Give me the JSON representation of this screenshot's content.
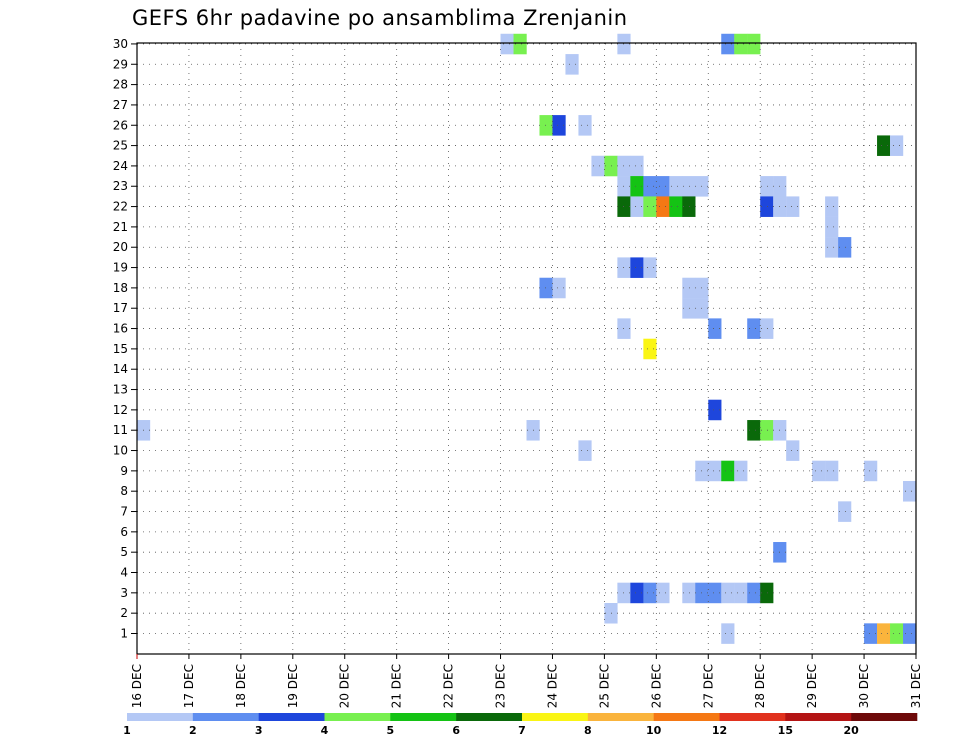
{
  "chart_data": {
    "type": "heatmap",
    "title": "GEFS 6hr padavine po ansamblima Zrenjanin",
    "x_labels": [
      "16 DEC",
      "17 DEC",
      "18 DEC",
      "19 DEC",
      "20 DEC",
      "21 DEC",
      "22 DEC",
      "23 DEC",
      "24 DEC",
      "25 DEC",
      "26 DEC",
      "27 DEC",
      "28 DEC",
      "29 DEC",
      "30 DEC",
      "31 DEC"
    ],
    "y_labels": [
      "1",
      "2",
      "3",
      "4",
      "5",
      "6",
      "7",
      "8",
      "9",
      "10",
      "11",
      "12",
      "13",
      "14",
      "15",
      "16",
      "17",
      "18",
      "19",
      "20",
      "21",
      "22",
      "23",
      "24",
      "25",
      "26",
      "27",
      "28",
      "29",
      "30"
    ],
    "grid": true,
    "colorbar": {
      "labels": [
        "1",
        "2",
        "3",
        "4",
        "5",
        "6",
        "7",
        "8",
        "10",
        "12",
        "15",
        "20"
      ],
      "colors": [
        "#b4c8f5",
        "#5f8ef0",
        "#1e46dc",
        "#78f050",
        "#14c314",
        "#0a690a",
        "#faf514",
        "#fab43c",
        "#f57814",
        "#e1321e",
        "#b41414",
        "#6e0a0a"
      ]
    },
    "cells": [
      {
        "member": 30,
        "step": 36,
        "value": 1
      },
      {
        "member": 30,
        "step": 37,
        "value": 4
      },
      {
        "member": 30,
        "step": 45,
        "value": 1
      },
      {
        "member": 30,
        "step": 53,
        "value": 2
      },
      {
        "member": 30,
        "step": 54,
        "value": 4
      },
      {
        "member": 30,
        "step": 55,
        "value": 4
      },
      {
        "member": 29,
        "step": 41,
        "value": 1
      },
      {
        "member": 26,
        "step": 39,
        "value": 4
      },
      {
        "member": 26,
        "step": 40,
        "value": 3
      },
      {
        "member": 26,
        "step": 42,
        "value": 1
      },
      {
        "member": 25,
        "step": 65,
        "value": 6
      },
      {
        "member": 25,
        "step": 66,
        "value": 1
      },
      {
        "member": 25,
        "step": 68,
        "value": 6
      },
      {
        "member": 24,
        "step": 43,
        "value": 1
      },
      {
        "member": 24,
        "step": 44,
        "value": 4
      },
      {
        "member": 24,
        "step": 45,
        "value": 1
      },
      {
        "member": 24,
        "step": 46,
        "value": 1
      },
      {
        "member": 23,
        "step": 45,
        "value": 1
      },
      {
        "member": 23,
        "step": 46,
        "value": 5
      },
      {
        "member": 23,
        "step": 47,
        "value": 2
      },
      {
        "member": 23,
        "step": 48,
        "value": 2
      },
      {
        "member": 23,
        "step": 49,
        "value": 1
      },
      {
        "member": 23,
        "step": 50,
        "value": 1
      },
      {
        "member": 23,
        "step": 51,
        "value": 1
      },
      {
        "member": 23,
        "step": 56,
        "value": 1
      },
      {
        "member": 23,
        "step": 57,
        "value": 1
      },
      {
        "member": 22,
        "step": 45,
        "value": 6
      },
      {
        "member": 22,
        "step": 46,
        "value": 1
      },
      {
        "member": 22,
        "step": 47,
        "value": 4
      },
      {
        "member": 22,
        "step": 48,
        "value": 10
      },
      {
        "member": 22,
        "step": 49,
        "value": 5
      },
      {
        "member": 22,
        "step": 50,
        "value": 6
      },
      {
        "member": 22,
        "step": 56,
        "value": 3
      },
      {
        "member": 22,
        "step": 57,
        "value": 1
      },
      {
        "member": 22,
        "step": 58,
        "value": 1
      },
      {
        "member": 22,
        "step": 61,
        "value": 1
      },
      {
        "member": 21,
        "step": 61,
        "value": 1
      },
      {
        "member": 20,
        "step": 61,
        "value": 1
      },
      {
        "member": 20,
        "step": 62,
        "value": 2
      },
      {
        "member": 19,
        "step": 45,
        "value": 1
      },
      {
        "member": 19,
        "step": 46,
        "value": 3
      },
      {
        "member": 19,
        "step": 47,
        "value": 1
      },
      {
        "member": 18,
        "step": 39,
        "value": 2
      },
      {
        "member": 18,
        "step": 40,
        "value": 1
      },
      {
        "member": 18,
        "step": 50,
        "value": 1
      },
      {
        "member": 18,
        "step": 51,
        "value": 1
      },
      {
        "member": 17,
        "step": 50,
        "value": 1
      },
      {
        "member": 17,
        "step": 51,
        "value": 1
      },
      {
        "member": 16,
        "step": 45,
        "value": 1
      },
      {
        "member": 16,
        "step": 52,
        "value": 2
      },
      {
        "member": 16,
        "step": 55,
        "value": 2
      },
      {
        "member": 16,
        "step": 56,
        "value": 1
      },
      {
        "member": 15,
        "step": 47,
        "value": 7
      },
      {
        "member": 12,
        "step": 52,
        "value": 3
      },
      {
        "member": 12,
        "step": 68,
        "value": 1
      },
      {
        "member": 11,
        "step": 8,
        "value": 1
      },
      {
        "member": 11,
        "step": 38,
        "value": 1
      },
      {
        "member": 11,
        "step": 55,
        "value": 6
      },
      {
        "member": 11,
        "step": 56,
        "value": 4
      },
      {
        "member": 11,
        "step": 57,
        "value": 1
      },
      {
        "member": 10,
        "step": 42,
        "value": 1
      },
      {
        "member": 10,
        "step": 58,
        "value": 1
      },
      {
        "member": 9,
        "step": 51,
        "value": 1
      },
      {
        "member": 9,
        "step": 52,
        "value": 1
      },
      {
        "member": 9,
        "step": 53,
        "value": 5
      },
      {
        "member": 9,
        "step": 54,
        "value": 1
      },
      {
        "member": 9,
        "step": 60,
        "value": 1
      },
      {
        "member": 9,
        "step": 61,
        "value": 1
      },
      {
        "member": 9,
        "step": 64,
        "value": 1
      },
      {
        "member": 8,
        "step": 67,
        "value": 1
      },
      {
        "member": 8,
        "step": 68,
        "value": 3
      },
      {
        "member": 7,
        "step": 62,
        "value": 1
      },
      {
        "member": 5,
        "step": 57,
        "value": 2
      },
      {
        "member": 3,
        "step": 45,
        "value": 1
      },
      {
        "member": 3,
        "step": 46,
        "value": 3
      },
      {
        "member": 3,
        "step": 47,
        "value": 2
      },
      {
        "member": 3,
        "step": 48,
        "value": 1
      },
      {
        "member": 3,
        "step": 50,
        "value": 1
      },
      {
        "member": 3,
        "step": 51,
        "value": 2
      },
      {
        "member": 3,
        "step": 52,
        "value": 2
      },
      {
        "member": 3,
        "step": 53,
        "value": 1
      },
      {
        "member": 3,
        "step": 54,
        "value": 1
      },
      {
        "member": 3,
        "step": 55,
        "value": 2
      },
      {
        "member": 3,
        "step": 56,
        "value": 6
      },
      {
        "member": 2,
        "step": 44,
        "value": 1
      },
      {
        "member": 1,
        "step": 53,
        "value": 1
      },
      {
        "member": 1,
        "step": 64,
        "value": 2
      },
      {
        "member": 1,
        "step": 65,
        "value": 8
      },
      {
        "member": 1,
        "step": 66,
        "value": 4
      },
      {
        "member": 1,
        "step": 67,
        "value": 2
      },
      {
        "member": 1,
        "step": 68,
        "value": 3
      }
    ]
  }
}
